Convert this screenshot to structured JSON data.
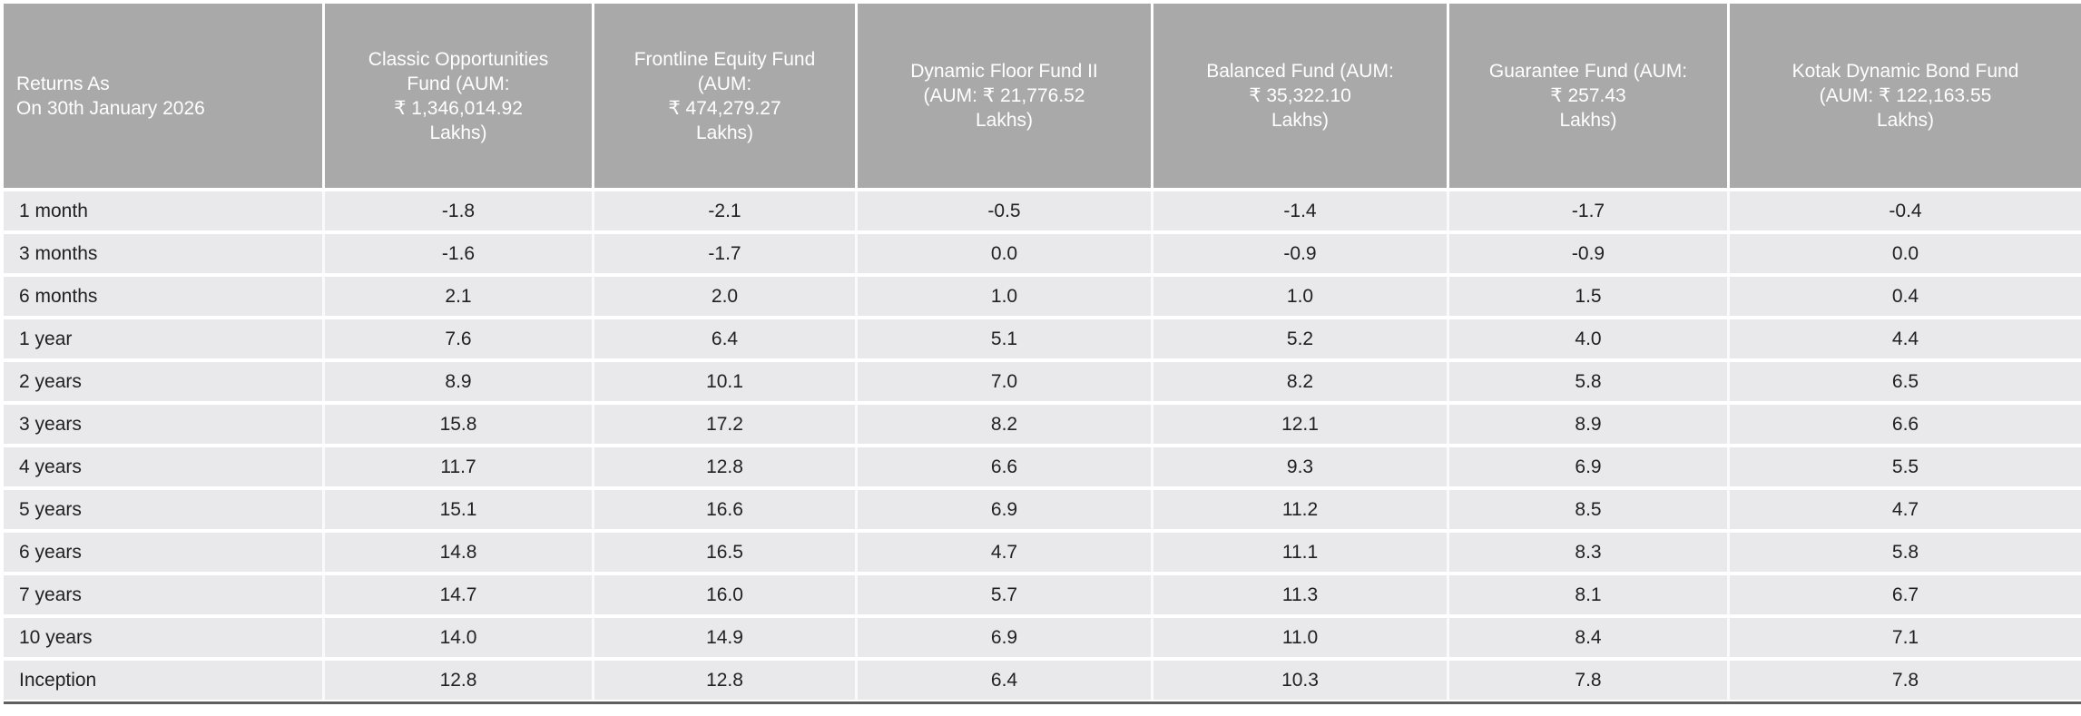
{
  "header": {
    "row_label_column": {
      "line1": "Returns As",
      "line2": "On 30th January 2026"
    },
    "fund_columns": [
      {
        "lines": [
          "Classic Opportunities",
          "Fund (AUM:",
          "₹ 1,346,014.92",
          "Lakhs)"
        ]
      },
      {
        "lines": [
          "Frontline Equity Fund",
          "(AUM:",
          "₹ 474,279.27",
          "Lakhs)"
        ]
      },
      {
        "lines": [
          "Dynamic Floor Fund II",
          "(AUM: ₹ 21,776.52",
          "Lakhs)"
        ]
      },
      {
        "lines": [
          "Balanced Fund (AUM:",
          "₹ 35,322.10",
          "Lakhs)"
        ]
      },
      {
        "lines": [
          "Guarantee Fund (AUM:",
          "₹ 257.43",
          "Lakhs)"
        ]
      },
      {
        "lines": [
          "Kotak Dynamic Bond Fund",
          "(AUM: ₹ 122,163.55",
          "Lakhs)"
        ]
      }
    ]
  },
  "rows": [
    {
      "label": "1 month",
      "values": [
        "-1.8",
        "-2.1",
        "-0.5",
        "-1.4",
        "-1.7",
        "-0.4"
      ]
    },
    {
      "label": "3 months",
      "values": [
        "-1.6",
        "-1.7",
        "0.0",
        "-0.9",
        "-0.9",
        "0.0"
      ]
    },
    {
      "label": "6 months",
      "values": [
        "2.1",
        "2.0",
        "1.0",
        "1.0",
        "1.5",
        "0.4"
      ]
    },
    {
      "label": "1 year",
      "values": [
        "7.6",
        "6.4",
        "5.1",
        "5.2",
        "4.0",
        "4.4"
      ]
    },
    {
      "label": "2 years",
      "values": [
        "8.9",
        "10.1",
        "7.0",
        "8.2",
        "5.8",
        "6.5"
      ]
    },
    {
      "label": "3 years",
      "values": [
        "15.8",
        "17.2",
        "8.2",
        "12.1",
        "8.9",
        "6.6"
      ]
    },
    {
      "label": "4 years",
      "values": [
        "11.7",
        "12.8",
        "6.6",
        "9.3",
        "6.9",
        "5.5"
      ]
    },
    {
      "label": "5 years",
      "values": [
        "15.1",
        "16.6",
        "6.9",
        "11.2",
        "8.5",
        "4.7"
      ]
    },
    {
      "label": "6 years",
      "values": [
        "14.8",
        "16.5",
        "4.7",
        "11.1",
        "8.3",
        "5.8"
      ]
    },
    {
      "label": "7 years",
      "values": [
        "14.7",
        "16.0",
        "5.7",
        "11.3",
        "8.1",
        "6.7"
      ]
    },
    {
      "label": "10 years",
      "values": [
        "14.0",
        "14.9",
        "6.9",
        "11.0",
        "8.4",
        "7.1"
      ]
    },
    {
      "label": "Inception",
      "values": [
        "12.8",
        "12.8",
        "6.4",
        "10.3",
        "7.8",
        "7.8"
      ]
    }
  ],
  "colors": {
    "header_bg": "#a9a9a9",
    "header_text": "#ffffff",
    "row_bg": "#e9e9eb",
    "row_text": "#212121",
    "bottom_rule": "#5f5f5f"
  }
}
